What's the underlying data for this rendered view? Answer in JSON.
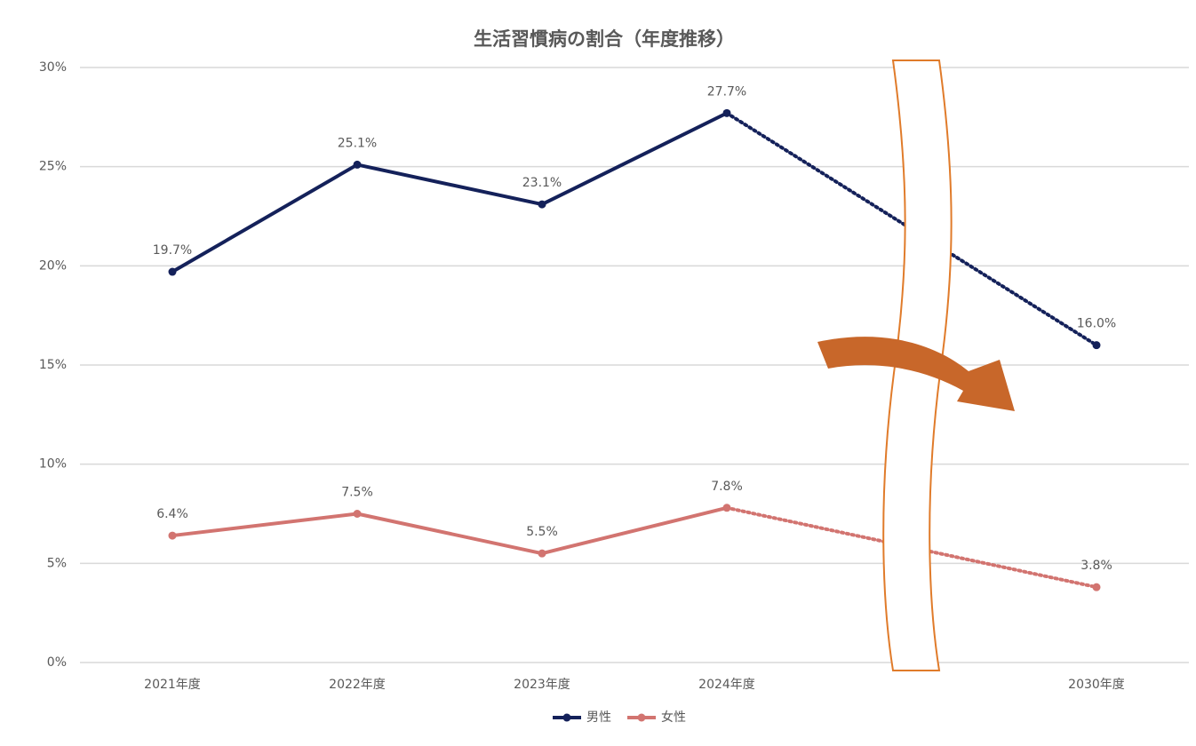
{
  "chart_data": {
    "type": "line",
    "title": "生活習慣病の割合（年度推移）",
    "categories": [
      "2021年度",
      "2022年度",
      "2023年度",
      "2024年度",
      null,
      "2030年度"
    ],
    "series": [
      {
        "name": "男性",
        "color": "#14215a",
        "values": [
          19.7,
          25.1,
          23.1,
          27.7,
          null,
          16.0
        ],
        "value_labels": [
          "19.7%",
          "25.1%",
          "23.1%",
          "27.7%",
          null,
          "16.0%"
        ]
      },
      {
        "name": "女性",
        "color": "#d27470",
        "values": [
          6.4,
          7.5,
          5.5,
          7.8,
          null,
          3.8
        ],
        "value_labels": [
          "6.4%",
          "7.5%",
          "5.5%",
          "7.8%",
          null,
          "3.8%"
        ]
      }
    ],
    "ylim": [
      0,
      30
    ],
    "yticks": [
      {
        "value": 0,
        "label": "0%"
      },
      {
        "value": 5,
        "label": "5%"
      },
      {
        "value": 10,
        "label": "10%"
      },
      {
        "value": 15,
        "label": "15%"
      },
      {
        "value": 20,
        "label": "20%"
      },
      {
        "value": 25,
        "label": "25%"
      },
      {
        "value": 30,
        "label": "30%"
      }
    ],
    "grid": true,
    "legend": "bottom"
  }
}
